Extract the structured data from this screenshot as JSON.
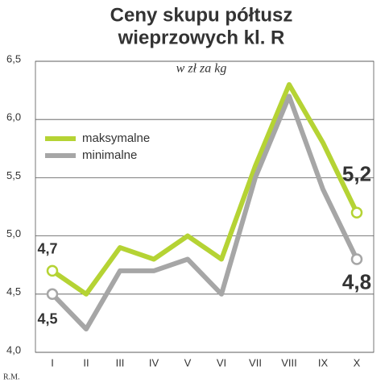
{
  "chart_data": {
    "type": "line",
    "title": "Ceny skupu półtusz",
    "title_line2": "wieprzowych kl. R",
    "subtitle": "w zł za kg",
    "note": "R.M.",
    "categories": [
      "I",
      "II",
      "III",
      "IV",
      "V",
      "VI",
      "VII",
      "VIII",
      "IX",
      "X"
    ],
    "series": [
      {
        "name": "maksymalne",
        "color": "#b5d334",
        "values": [
          4.7,
          4.5,
          4.9,
          4.8,
          5.0,
          4.8,
          5.6,
          6.3,
          5.8,
          5.2
        ],
        "value_labels": [
          "4,7",
          null,
          null,
          null,
          null,
          null,
          null,
          null,
          null,
          "5,2"
        ]
      },
      {
        "name": "minimalne",
        "color": "#a6a6a6",
        "values": [
          4.5,
          4.2,
          4.7,
          4.7,
          4.8,
          4.5,
          5.5,
          6.2,
          5.4,
          4.8
        ],
        "value_labels": [
          "4,5",
          null,
          null,
          null,
          null,
          null,
          null,
          null,
          null,
          "4,8"
        ]
      }
    ],
    "ylim": [
      4.0,
      6.5
    ],
    "yticks": [
      {
        "value": 4.0,
        "label": "4,0"
      },
      {
        "value": 4.5,
        "label": "4,5"
      },
      {
        "value": 5.0,
        "label": "5,0"
      },
      {
        "value": 5.5,
        "label": "5,5"
      },
      {
        "value": 6.0,
        "label": "6,0"
      },
      {
        "value": 6.5,
        "label": "6,5"
      }
    ],
    "grid": true,
    "legend": "upper left"
  }
}
